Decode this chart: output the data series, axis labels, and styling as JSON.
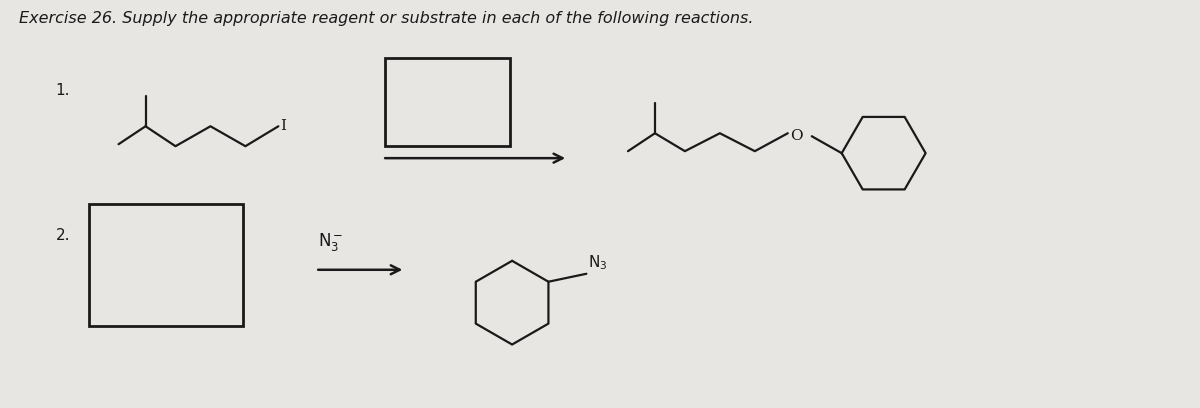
{
  "title": "Exercise 26. Supply the appropriate reagent or substrate in each of the following reactions.",
  "bg_color": "#e8e6e3",
  "line_color": "#1a1a1a",
  "label1": "1.",
  "label2": "2.",
  "atom_O": "O",
  "atom_I": "I",
  "n3_anion": "N₃⁻",
  "n3": "N₃",
  "figsize": [
    12.0,
    4.08
  ],
  "dpi": 100
}
